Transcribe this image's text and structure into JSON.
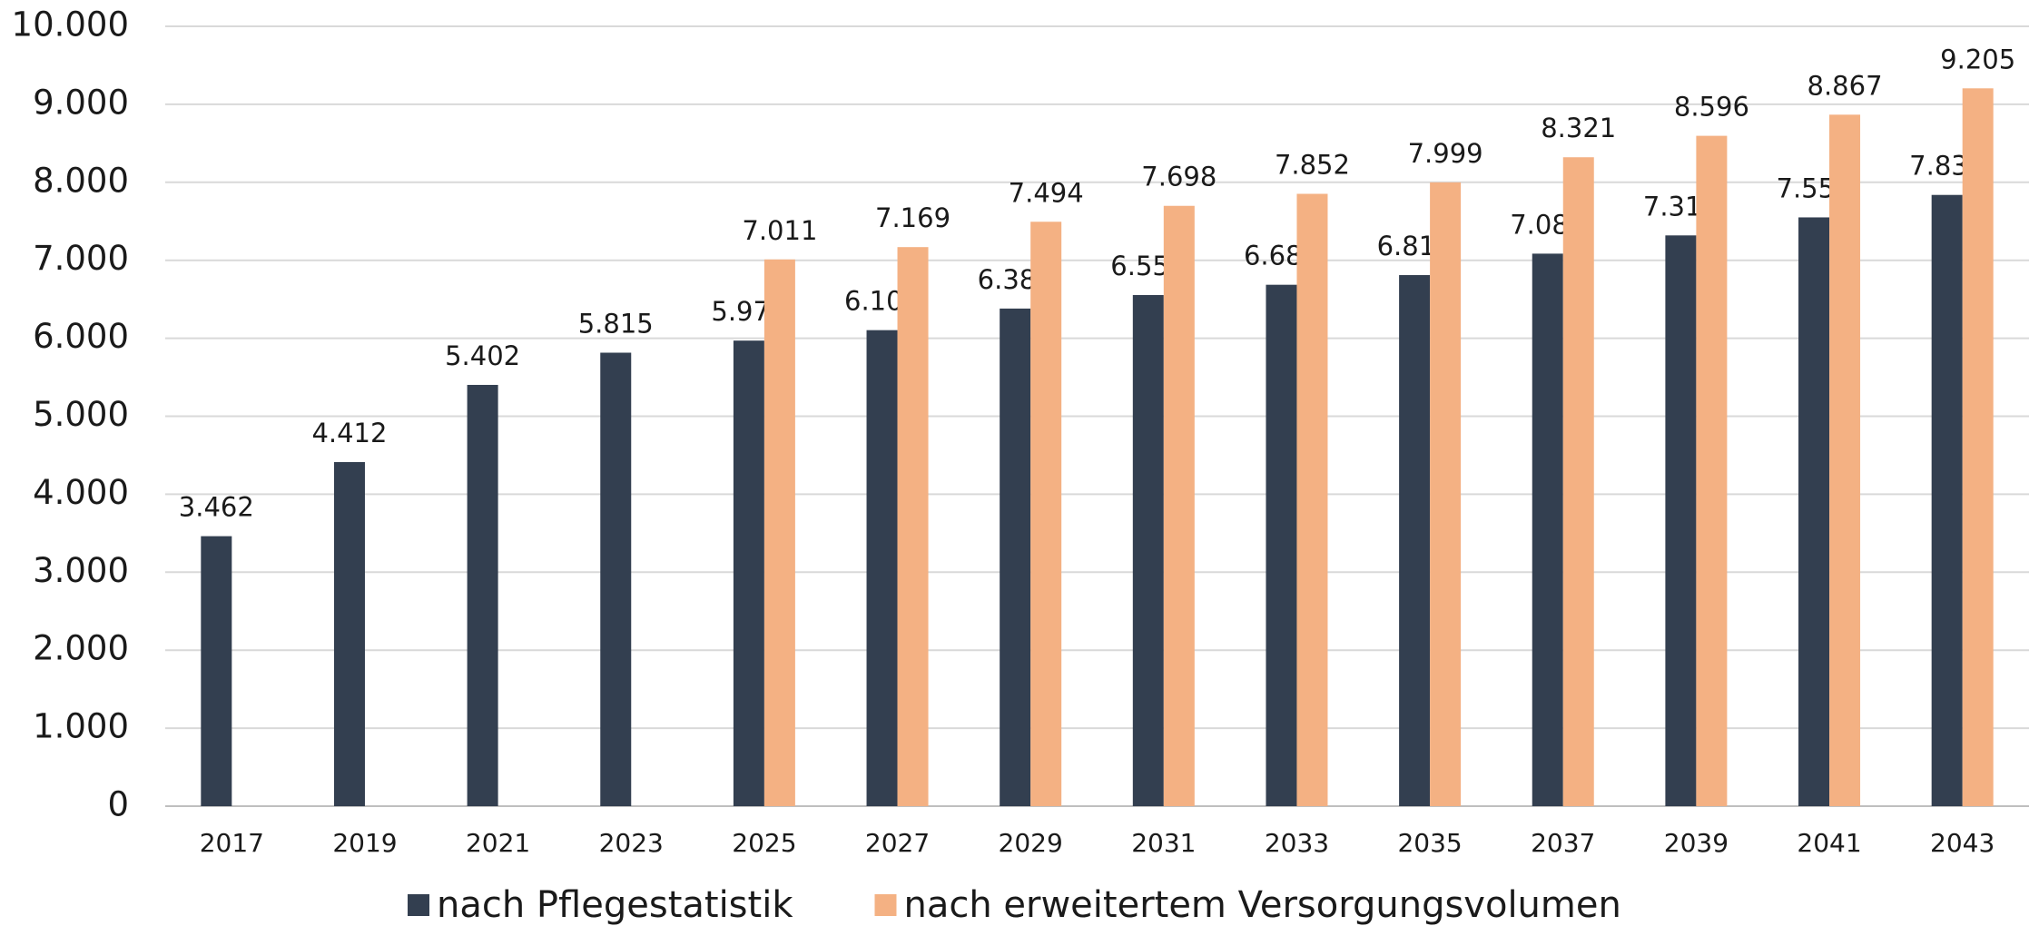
{
  "chart_data": {
    "type": "bar",
    "categories": [
      "2017",
      "2019",
      "2021",
      "2023",
      "2025",
      "2027",
      "2029",
      "2031",
      "2033",
      "2035",
      "2037",
      "2039",
      "2041",
      "2043"
    ],
    "series": [
      {
        "name": "nach Pflegestatistik",
        "color": "#333f50",
        "values": [
          3462,
          4412,
          5402,
          5815,
          5970,
          6104,
          6381,
          6554,
          6686,
          6810,
          7085,
          7319,
          7550,
          7838
        ],
        "value_labels": [
          "3.462",
          "4.412",
          "5.402",
          "5.815",
          "5.970",
          "6.104",
          "6.381",
          "6.554",
          "6.686",
          "6.810",
          "7.085",
          "7.319",
          "7.550",
          "7.838"
        ]
      },
      {
        "name": "nach erweitertem Versorgungsvolumen",
        "color": "#f4b183",
        "values": [
          null,
          null,
          null,
          null,
          7011,
          7169,
          7494,
          7698,
          7852,
          7999,
          8321,
          8596,
          8867,
          9205
        ],
        "value_labels": [
          null,
          null,
          null,
          null,
          "7.011",
          "7.169",
          "7.494",
          "7.698",
          "7.852",
          "7.999",
          "8.321",
          "8.596",
          "8.867",
          "9.205"
        ]
      }
    ],
    "ylim": [
      0,
      10000
    ],
    "yticks": [
      {
        "value": 0,
        "label": "0"
      },
      {
        "value": 1000,
        "label": "1.000"
      },
      {
        "value": 2000,
        "label": "2.000"
      },
      {
        "value": 3000,
        "label": "3.000"
      },
      {
        "value": 4000,
        "label": "4.000"
      },
      {
        "value": 5000,
        "label": "5.000"
      },
      {
        "value": 6000,
        "label": "6.000"
      },
      {
        "value": 7000,
        "label": "7.000"
      },
      {
        "value": 8000,
        "label": "8.000"
      },
      {
        "value": 9000,
        "label": "9.000"
      },
      {
        "value": 10000,
        "label": "10.000"
      }
    ],
    "grid": true,
    "legend": "bottom"
  }
}
